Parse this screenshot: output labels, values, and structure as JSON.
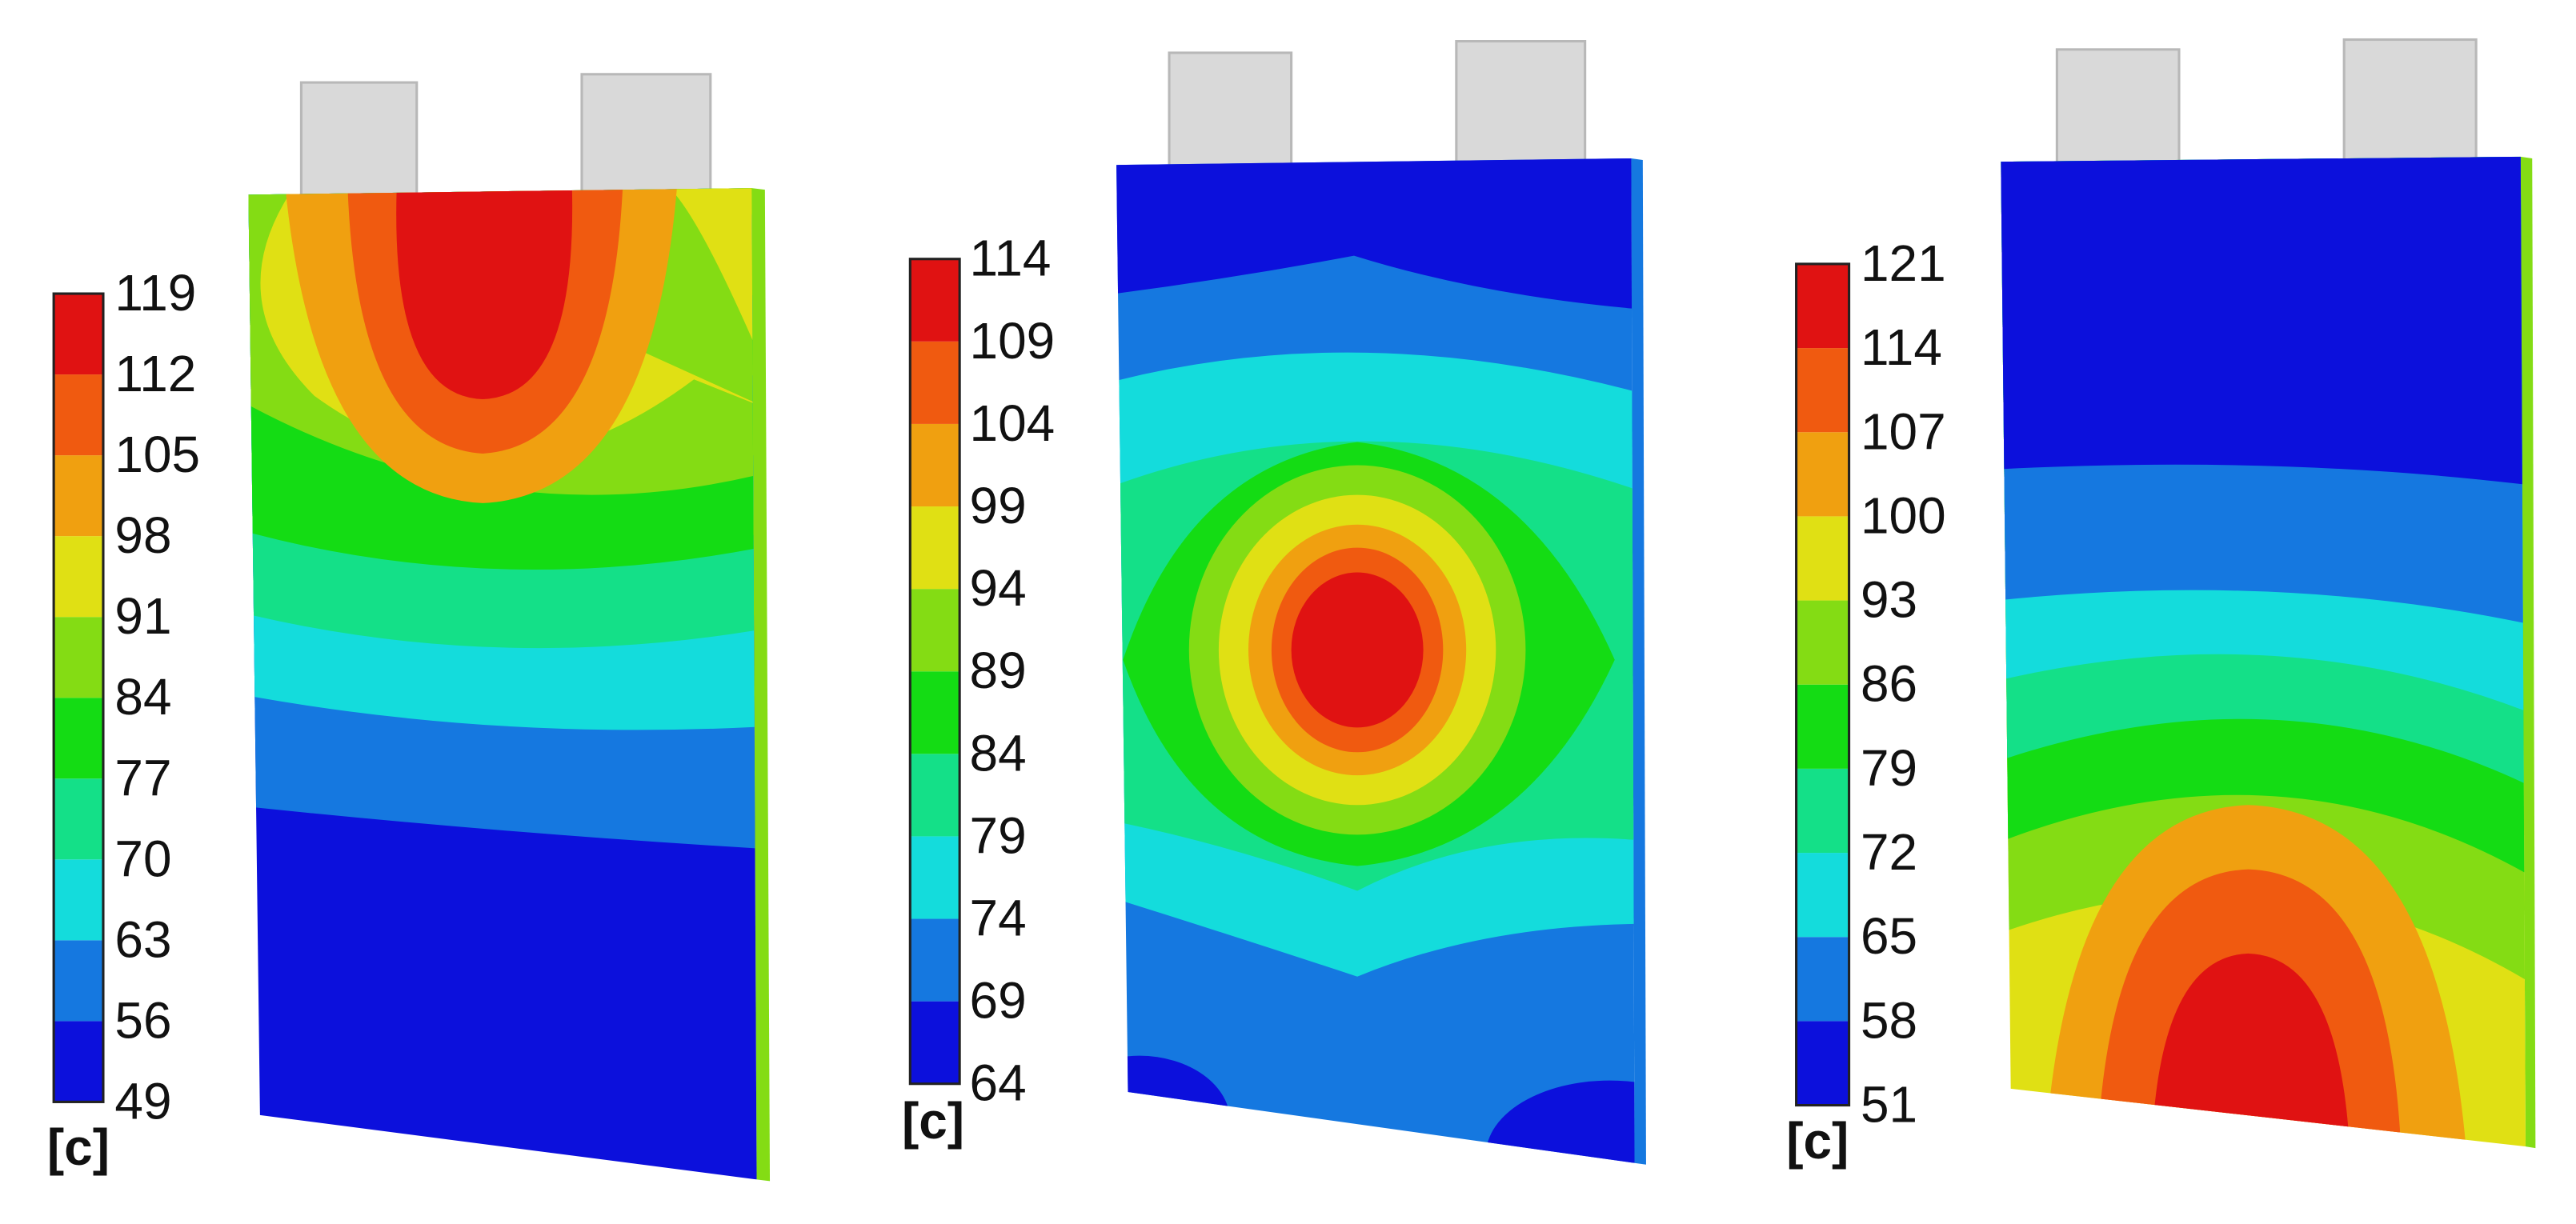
{
  "colors": [
    "#0c10dc",
    "#1578e0",
    "#14dcdc",
    "#14e088",
    "#14dc14",
    "#84dc14",
    "#e0e014",
    "#f0a010",
    "#f05a10",
    "#e01212"
  ],
  "panels": [
    {
      "unit": "[c]",
      "scale_labels": [
        49,
        56,
        63,
        70,
        77,
        84,
        91,
        98,
        105,
        112,
        119
      ]
    },
    {
      "unit": "[c]",
      "scale_labels": [
        64,
        69,
        74,
        79,
        84,
        89,
        94,
        99,
        104,
        109,
        114
      ]
    },
    {
      "unit": "[c]",
      "scale_labels": [
        51,
        58,
        65,
        72,
        79,
        86,
        93,
        100,
        107,
        114,
        121
      ]
    }
  ]
}
